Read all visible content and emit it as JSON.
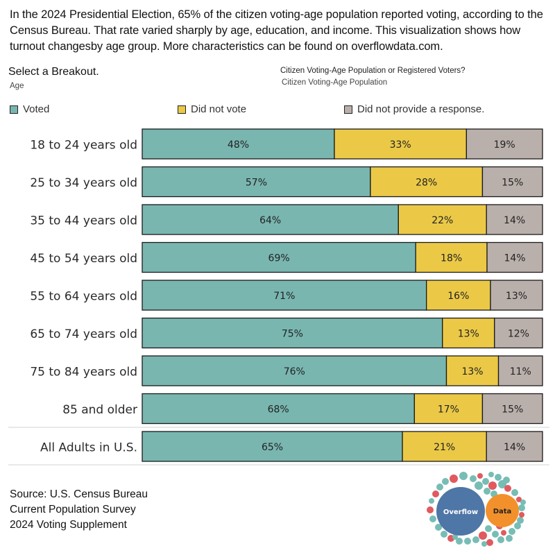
{
  "intro": {
    "text": "In the 2024 Presidential Election, 65% of the citizen voting-age population reported voting, according to the Census Bureau. That rate varied sharply by age, education, and income. This visualization shows how turnout changesby age group. More characteristics can be found on overflowdata.com."
  },
  "filters": {
    "breakout_title": "Select a Breakout.",
    "breakout_value": "Age",
    "population_title": "Citizen Voting-Age Population or Registered Voters?",
    "population_value": "Citizen Voting-Age Population"
  },
  "colors": {
    "voted": "#79b6b0",
    "did_not_vote": "#ebc947",
    "no_response": "#bab0ab",
    "bar_border": "#1a1a1a",
    "separator": "#dcdcdc"
  },
  "chart_data": {
    "type": "bar",
    "orientation": "horizontal",
    "stacked": true,
    "normalized": true,
    "title": "",
    "xlabel": "",
    "ylabel": "",
    "xlim": [
      0,
      100
    ],
    "grid": false,
    "legend_position": "top",
    "categories": [
      "18 to 24 years old",
      "25 to 34 years old",
      "35 to 44 years old",
      "45 to 54 years old",
      "55 to 64 years old",
      "65 to 74 years old",
      "75 to 84 years old",
      "85 and older",
      "All Adults in U.S."
    ],
    "series": [
      {
        "name": "Voted",
        "key": "voted",
        "values": [
          48,
          57,
          64,
          69,
          71,
          75,
          76,
          68,
          65
        ]
      },
      {
        "name": "Did not vote",
        "key": "did_not_vote",
        "values": [
          33,
          28,
          22,
          18,
          16,
          13,
          13,
          17,
          21
        ]
      },
      {
        "name": "Did not provide a response.",
        "key": "no_response",
        "values": [
          19,
          15,
          14,
          14,
          13,
          12,
          11,
          15,
          14
        ]
      }
    ],
    "value_suffix": "%"
  },
  "legend": {
    "items": [
      {
        "label": "Voted",
        "key": "voted"
      },
      {
        "label": "Did not vote",
        "key": "did_not_vote"
      },
      {
        "label": "Did not provide a response.",
        "key": "no_response"
      }
    ]
  },
  "footer": {
    "line1": "Source: U.S. Census Bureau",
    "line2": "Current Population Survey",
    "line3": "2024 Voting Supplement"
  },
  "logo": {
    "word1": "Overflow",
    "word2": "Data",
    "blue": "#4e76a6",
    "orange": "#f2912c",
    "teal": "#77bdb5",
    "red": "#e05a5f"
  }
}
